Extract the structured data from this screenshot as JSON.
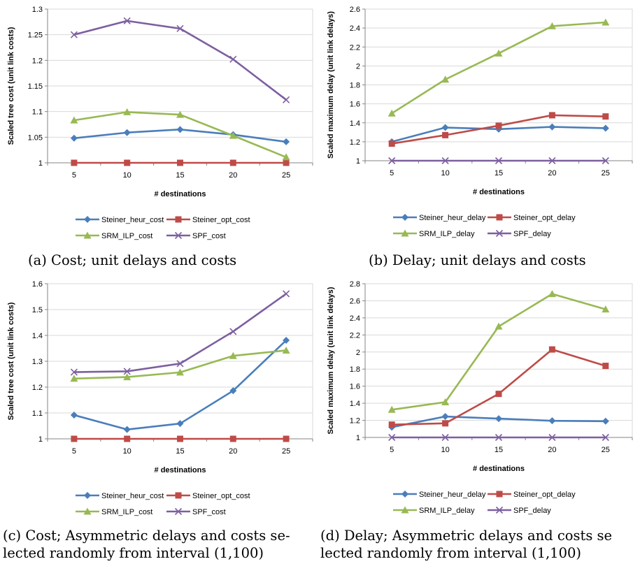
{
  "chart_data": [
    {
      "type": "line",
      "caption": "(a) Cost; unit delays and costs",
      "xlabel": "# destinations",
      "ylabel": "Scaled tree cost (unit link costs)",
      "categories": [
        "5",
        "10",
        "15",
        "20",
        "25"
      ],
      "ylim": [
        1,
        1.3
      ],
      "yticks": [
        "1",
        "1.05",
        "1.1",
        "1.15",
        "1.2",
        "1.25",
        "1.3"
      ],
      "yticks_values": [
        1,
        1.05,
        1.1,
        1.15,
        1.2,
        1.25,
        1.3
      ],
      "grid": "horizontal",
      "legend_position": "bottom",
      "series": [
        {
          "name": "Steiner_heur_cost",
          "color": "#4a7ebb",
          "marker": "diamond",
          "values": [
            1.048,
            1.059,
            1.065,
            1.055,
            1.041
          ]
        },
        {
          "name": "Steiner_opt_cost",
          "color": "#be4b48",
          "marker": "square",
          "values": [
            1.0,
            1.0,
            1.0,
            1.0,
            1.0
          ]
        },
        {
          "name": "SRM_ILP_cost",
          "color": "#98b954",
          "marker": "triangle",
          "values": [
            1.083,
            1.099,
            1.094,
            1.053,
            1.011
          ]
        },
        {
          "name": "SPF_cost",
          "color": "#7d5fa0",
          "marker": "x",
          "values": [
            1.25,
            1.277,
            1.262,
            1.202,
            1.123
          ]
        }
      ]
    },
    {
      "type": "line",
      "caption": "(b) Delay; unit delays and costs",
      "xlabel": "# destinations",
      "ylabel": "Scaled maximum delay (unit link delays)",
      "categories": [
        "5",
        "10",
        "15",
        "20",
        "25"
      ],
      "ylim": [
        1,
        2.6
      ],
      "yticks": [
        "1",
        "1.2",
        "1.4",
        "1.6",
        "1.8",
        "2",
        "2.2",
        "2.4",
        "2.6"
      ],
      "yticks_values": [
        1,
        1.2,
        1.4,
        1.6,
        1.8,
        2,
        2.2,
        2.4,
        2.6
      ],
      "grid": "horizontal",
      "legend_position": "bottom",
      "series": [
        {
          "name": "Steiner_heur_delay",
          "color": "#4a7ebb",
          "marker": "diamond",
          "values": [
            1.2,
            1.35,
            1.333,
            1.357,
            1.343
          ]
        },
        {
          "name": "Steiner_opt_delay",
          "color": "#be4b48",
          "marker": "square",
          "values": [
            1.18,
            1.27,
            1.37,
            1.48,
            1.467
          ]
        },
        {
          "name": "SRM_ILP_delay",
          "color": "#98b954",
          "marker": "triangle",
          "values": [
            1.5,
            1.857,
            2.133,
            2.42,
            2.46
          ]
        },
        {
          "name": "SPF_delay",
          "color": "#7d5fa0",
          "marker": "x",
          "values": [
            1.0,
            1.0,
            1.0,
            1.0,
            1.0
          ]
        }
      ]
    },
    {
      "type": "line",
      "caption": "(c) Cost; Asymmetric delays and costs selected randomly from interval (1,100)",
      "caption_lines": [
        "(c) Cost; Asymmetric delays and costs se-",
        "lected randomly from interval (1,100)"
      ],
      "xlabel": "# destinations",
      "ylabel": "Scaled tree cost (unit link costs)",
      "categories": [
        "5",
        "10",
        "15",
        "20",
        "25"
      ],
      "ylim": [
        1,
        1.6
      ],
      "yticks": [
        "1",
        "1.1",
        "1.2",
        "1.3",
        "1.4",
        "1.5",
        "1.6"
      ],
      "yticks_values": [
        1,
        1.1,
        1.2,
        1.3,
        1.4,
        1.5,
        1.6
      ],
      "grid": "horizontal",
      "legend_position": "bottom",
      "series": [
        {
          "name": "Steiner_heur_cost",
          "color": "#4a7ebb",
          "marker": "diamond",
          "values": [
            1.092,
            1.036,
            1.059,
            1.186,
            1.381
          ]
        },
        {
          "name": "Steiner_opt_cost",
          "color": "#be4b48",
          "marker": "square",
          "values": [
            1.0,
            1.0,
            1.0,
            1.0,
            1.0
          ]
        },
        {
          "name": "SRM_ILP_cost",
          "color": "#98b954",
          "marker": "triangle",
          "values": [
            1.233,
            1.239,
            1.257,
            1.321,
            1.342
          ]
        },
        {
          "name": "SPF_cost",
          "color": "#7d5fa0",
          "marker": "x",
          "values": [
            1.258,
            1.261,
            1.291,
            1.415,
            1.561
          ]
        }
      ]
    },
    {
      "type": "line",
      "caption": "(d) Delay; Asymmetric delays and costs selected randomly from interval (1,100)",
      "caption_lines": [
        "(d) Delay; Asymmetric delays and costs se",
        "lected randomly from interval (1,100)"
      ],
      "xlabel": "# destinations",
      "ylabel": "Scaled maximum delay (unit link delays)",
      "categories": [
        "5",
        "10",
        "15",
        "20",
        "25"
      ],
      "ylim": [
        1,
        2.8
      ],
      "yticks": [
        "1",
        "1.2",
        "1.4",
        "1.6",
        "1.8",
        "2",
        "2.2",
        "2.4",
        "2.6",
        "2.8"
      ],
      "yticks_values": [
        1,
        1.2,
        1.4,
        1.6,
        1.8,
        2,
        2.2,
        2.4,
        2.6,
        2.8
      ],
      "grid": "horizontal",
      "legend_position": "bottom",
      "series": [
        {
          "name": "Steiner_heur_delay",
          "color": "#4a7ebb",
          "marker": "diamond",
          "values": [
            1.12,
            1.245,
            1.22,
            1.195,
            1.19
          ]
        },
        {
          "name": "Steiner_opt_delay",
          "color": "#be4b48",
          "marker": "square",
          "values": [
            1.15,
            1.165,
            1.51,
            2.03,
            1.838
          ]
        },
        {
          "name": "SRM_ILP_delay",
          "color": "#98b954",
          "marker": "triangle",
          "values": [
            1.325,
            1.413,
            2.3,
            2.68,
            2.5
          ]
        },
        {
          "name": "SPF_delay",
          "color": "#7d5fa0",
          "marker": "x",
          "values": [
            1.0,
            1.0,
            1.0,
            1.0,
            1.0
          ]
        }
      ]
    }
  ]
}
